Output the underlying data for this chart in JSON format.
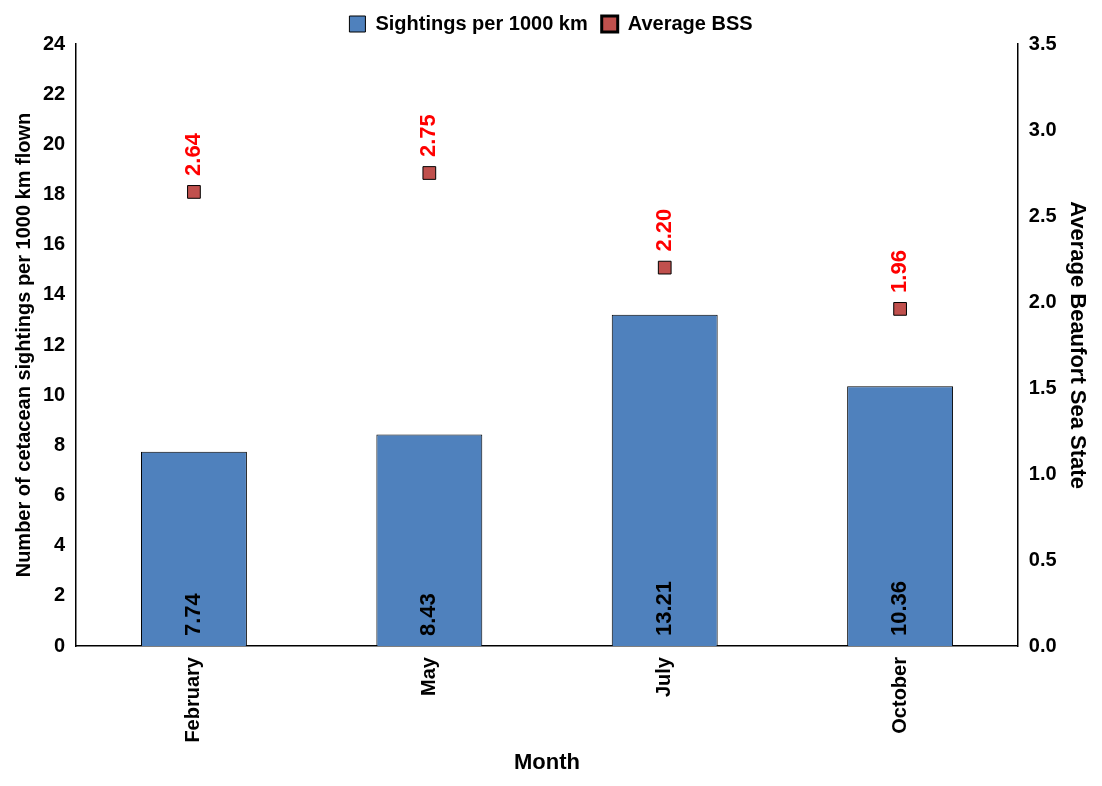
{
  "chart_data": {
    "type": "bar",
    "xlabel": "Month",
    "ylabel": "Number of cetacean sightings per 1000 km flown",
    "y2label": "Average Beaufort Sea State",
    "categories": [
      "February",
      "May",
      "July",
      "October"
    ],
    "ylim": [
      0,
      24
    ],
    "yticks": [
      0,
      2,
      4,
      6,
      8,
      10,
      12,
      14,
      16,
      18,
      20,
      22,
      24
    ],
    "y2lim": [
      0,
      3.5
    ],
    "y2ticks": [
      {
        "value": 0,
        "label": "0.0"
      },
      0.5,
      {
        "value": 1,
        "label": "1.0"
      },
      1.5,
      {
        "value": 2,
        "label": "2.0"
      },
      2.5,
      {
        "value": 3,
        "label": "3.0"
      },
      3.5
    ],
    "legend": "top",
    "grid": false,
    "marker": "square",
    "series": [
      {
        "name": "Sightings per 1000 km",
        "color": "#4f81bd",
        "values": [
          7.74,
          8.43,
          13.21,
          10.36
        ],
        "value_labels": [
          "7.74",
          "8.43",
          "13.21",
          "10.36"
        ]
      },
      {
        "name": "Average BSS",
        "type": "scatter",
        "axis": "y2",
        "color": "#c0504d",
        "x": [
          "February",
          "May",
          "July",
          "October"
        ],
        "values": [
          2.64,
          2.75,
          2.2,
          1.96
        ],
        "value_labels": [
          "2.64",
          "2.75",
          "2.20",
          "1.96"
        ]
      }
    ]
  }
}
